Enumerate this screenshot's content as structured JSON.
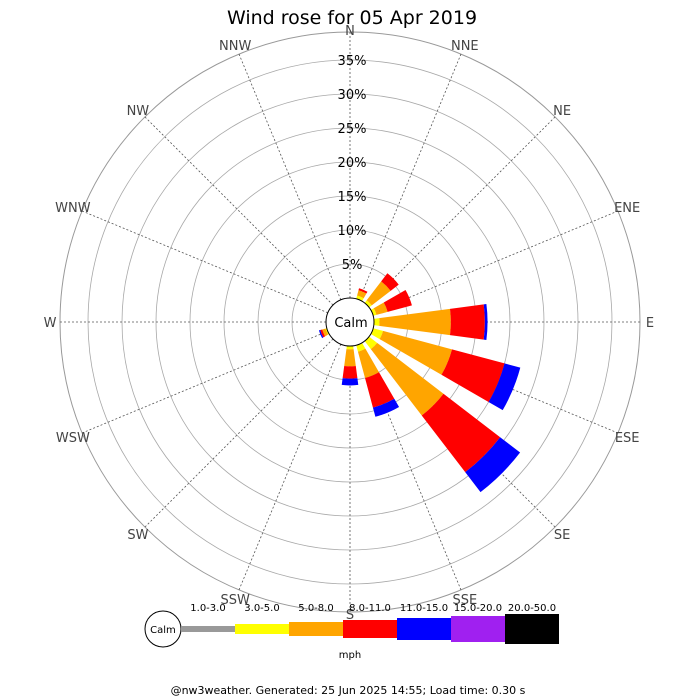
{
  "chart_data": {
    "type": "wind-rose",
    "title": "Wind rose for 05 Apr 2019",
    "unit": "mph",
    "radial_ticks": [
      "5%",
      "10%",
      "15%",
      "20%",
      "25%",
      "30%",
      "35%"
    ],
    "radial_max": 35,
    "directions": [
      "N",
      "NNE",
      "NE",
      "ENE",
      "E",
      "ESE",
      "SE",
      "SSE",
      "S",
      "SSW",
      "SW",
      "WSW",
      "W",
      "WNW",
      "NW",
      "NNW"
    ],
    "calm_label": "Calm",
    "bins": [
      {
        "label": "1.0-3.0",
        "color": "#999999"
      },
      {
        "label": "3.0-5.0",
        "color": "#ffff00"
      },
      {
        "label": "5.0-8.0",
        "color": "#ffa500"
      },
      {
        "label": "8.0-11.0",
        "color": "#ff0000"
      },
      {
        "label": "11.0-15.0",
        "color": "#0000ff"
      },
      {
        "label": "15.0-20.0",
        "color": "#a020f0"
      },
      {
        "label": "20.0-50.0",
        "color": "#000000"
      }
    ],
    "series": [
      {
        "direction": "N",
        "values": [
          0,
          0,
          0,
          0,
          0,
          0,
          0
        ]
      },
      {
        "direction": "NNE",
        "values": [
          0,
          0.5,
          0.8,
          0.3,
          0,
          0,
          0
        ]
      },
      {
        "direction": "NE",
        "values": [
          0,
          0.5,
          3.5,
          1.5,
          0,
          0,
          0
        ]
      },
      {
        "direction": "ENE",
        "values": [
          0,
          0.5,
          1.7,
          3.7,
          0,
          0,
          0
        ]
      },
      {
        "direction": "E",
        "values": [
          0,
          0.8,
          10.5,
          5.0,
          0.4,
          0,
          0
        ]
      },
      {
        "direction": "ESE",
        "values": [
          0,
          1.5,
          10.5,
          8.0,
          2.4,
          0,
          0
        ]
      },
      {
        "direction": "SE",
        "values": [
          0,
          1.5,
          12.3,
          10.5,
          3.7,
          0,
          0
        ]
      },
      {
        "direction": "SSE",
        "values": [
          0,
          1.0,
          4.0,
          4.5,
          1.4,
          0,
          0
        ]
      },
      {
        "direction": "S",
        "values": [
          0,
          0.5,
          2.5,
          1.8,
          1.0,
          0,
          0
        ]
      },
      {
        "direction": "SSW",
        "values": [
          0,
          0,
          0,
          0,
          0,
          0,
          0
        ]
      },
      {
        "direction": "SW",
        "values": [
          0,
          0,
          0,
          0,
          0,
          0,
          0
        ]
      },
      {
        "direction": "WSW",
        "values": [
          0,
          0.2,
          0.5,
          0.3,
          0.2,
          0,
          0
        ]
      },
      {
        "direction": "W",
        "values": [
          0,
          0,
          0,
          0,
          0,
          0,
          0
        ]
      },
      {
        "direction": "WNW",
        "values": [
          0,
          0,
          0,
          0,
          0,
          0,
          0
        ]
      },
      {
        "direction": "NW",
        "values": [
          0,
          0,
          0,
          0,
          0,
          0,
          0
        ]
      },
      {
        "direction": "NNW",
        "values": [
          0,
          0,
          0,
          0,
          0,
          0,
          0
        ]
      }
    ]
  },
  "footer": "@nw3weather. Generated: 25 Jun 2025 14:55; Load time: 0.30 s"
}
